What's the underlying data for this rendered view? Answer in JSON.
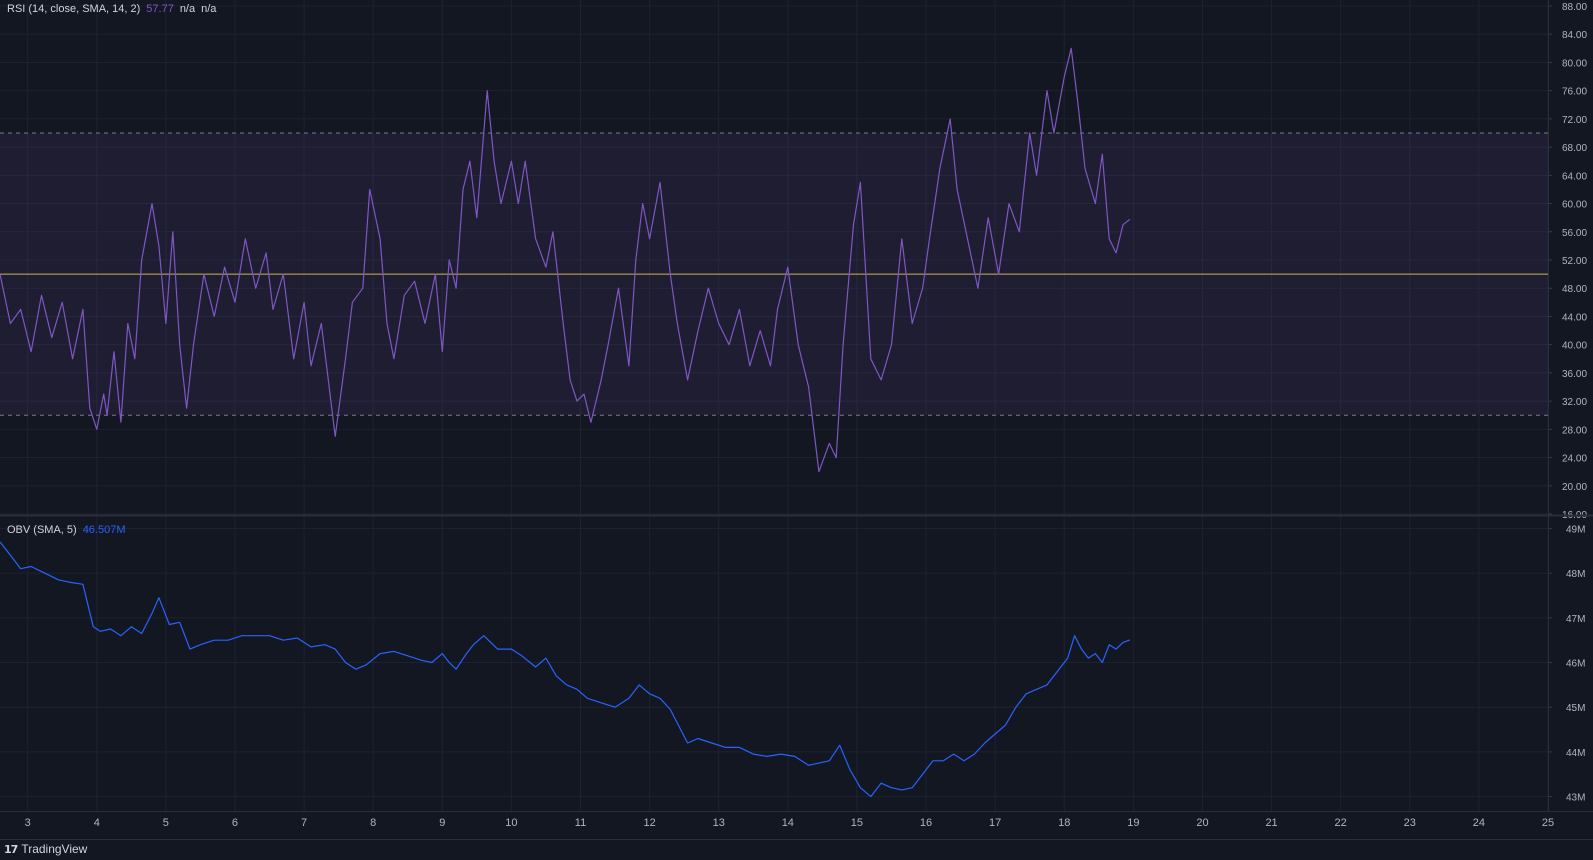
{
  "rsi_legend": {
    "label": "RSI (14, close, SMA, 14, 2)",
    "value": "57.77",
    "na1": "n/a",
    "na2": "n/a"
  },
  "obv_legend": {
    "label": "OBV (SMA, 5)",
    "value": "46.507M"
  },
  "footer": {
    "brand": "TradingView",
    "logo_icon": "tradingview-logo-icon"
  },
  "colors": {
    "background": "#131722",
    "rsi_line": "#7e57c2",
    "rsi_band": "#7e57c2",
    "midline": "#c9b45a",
    "obv_line": "#2962ff",
    "grid": "#1e2230",
    "axis_text": "#b2b5be"
  },
  "chart_data": [
    {
      "type": "line",
      "title": "RSI (14, close, SMA, 14, 2)",
      "ylim": [
        16,
        88
      ],
      "xlim": [
        2.6,
        25
      ],
      "y_ticks": [
        "16.00",
        "20.00",
        "24.00",
        "28.00",
        "32.00",
        "36.00",
        "40.00",
        "44.00",
        "48.00",
        "52.00",
        "56.00",
        "60.00",
        "64.00",
        "68.00",
        "72.00",
        "76.00",
        "80.00",
        "84.00",
        "88.00"
      ],
      "bands": {
        "upper": 70,
        "lower": 30,
        "middle": 50
      },
      "grid": true,
      "series": [
        {
          "values": [
            [
              2.6,
              50
            ],
            [
              2.75,
              43
            ],
            [
              2.9,
              45
            ],
            [
              3.05,
              39
            ],
            [
              3.2,
              47
            ],
            [
              3.35,
              41
            ],
            [
              3.5,
              46
            ],
            [
              3.65,
              38
            ],
            [
              3.8,
              45
            ],
            [
              3.9,
              31
            ],
            [
              4.0,
              28
            ],
            [
              4.1,
              33
            ],
            [
              4.15,
              30
            ],
            [
              4.25,
              39
            ],
            [
              4.35,
              29
            ],
            [
              4.45,
              43
            ],
            [
              4.55,
              38
            ],
            [
              4.65,
              52
            ],
            [
              4.8,
              60
            ],
            [
              4.9,
              54
            ],
            [
              5.0,
              43
            ],
            [
              5.1,
              56
            ],
            [
              5.2,
              40
            ],
            [
              5.3,
              31
            ],
            [
              5.4,
              40
            ],
            [
              5.55,
              50
            ],
            [
              5.7,
              44
            ],
            [
              5.85,
              51
            ],
            [
              6.0,
              46
            ],
            [
              6.15,
              55
            ],
            [
              6.3,
              48
            ],
            [
              6.45,
              53
            ],
            [
              6.55,
              45
            ],
            [
              6.7,
              50
            ],
            [
              6.85,
              38
            ],
            [
              7.0,
              46
            ],
            [
              7.1,
              37
            ],
            [
              7.25,
              43
            ],
            [
              7.35,
              35
            ],
            [
              7.45,
              27
            ],
            [
              7.6,
              38
            ],
            [
              7.7,
              46
            ],
            [
              7.85,
              48
            ],
            [
              7.95,
              62
            ],
            [
              8.1,
              55
            ],
            [
              8.2,
              43
            ],
            [
              8.3,
              38
            ],
            [
              8.45,
              47
            ],
            [
              8.6,
              49
            ],
            [
              8.75,
              43
            ],
            [
              8.9,
              50
            ],
            [
              9.0,
              39
            ],
            [
              9.1,
              52
            ],
            [
              9.2,
              48
            ],
            [
              9.3,
              62
            ],
            [
              9.4,
              66
            ],
            [
              9.5,
              58
            ],
            [
              9.65,
              76
            ],
            [
              9.75,
              66
            ],
            [
              9.85,
              60
            ],
            [
              10.0,
              66
            ],
            [
              10.1,
              60
            ],
            [
              10.2,
              66
            ],
            [
              10.35,
              55
            ],
            [
              10.5,
              51
            ],
            [
              10.6,
              56
            ],
            [
              10.75,
              43
            ],
            [
              10.85,
              35
            ],
            [
              10.95,
              32
            ],
            [
              11.05,
              33
            ],
            [
              11.15,
              29
            ],
            [
              11.3,
              35
            ],
            [
              11.4,
              40
            ],
            [
              11.55,
              48
            ],
            [
              11.7,
              37
            ],
            [
              11.8,
              52
            ],
            [
              11.9,
              60
            ],
            [
              12.0,
              55
            ],
            [
              12.15,
              63
            ],
            [
              12.3,
              50
            ],
            [
              12.4,
              43
            ],
            [
              12.55,
              35
            ],
            [
              12.7,
              42
            ],
            [
              12.85,
              48
            ],
            [
              13.0,
              43
            ],
            [
              13.15,
              40
            ],
            [
              13.3,
              45
            ],
            [
              13.45,
              37
            ],
            [
              13.6,
              42
            ],
            [
              13.75,
              37
            ],
            [
              13.85,
              45
            ],
            [
              14.0,
              51
            ],
            [
              14.15,
              40
            ],
            [
              14.3,
              34
            ],
            [
              14.45,
              22
            ],
            [
              14.6,
              26
            ],
            [
              14.7,
              24
            ],
            [
              14.8,
              40
            ],
            [
              14.95,
              57
            ],
            [
              15.05,
              63
            ],
            [
              15.2,
              38
            ],
            [
              15.35,
              35
            ],
            [
              15.5,
              40
            ],
            [
              15.65,
              55
            ],
            [
              15.8,
              43
            ],
            [
              15.95,
              48
            ],
            [
              16.05,
              55
            ],
            [
              16.2,
              65
            ],
            [
              16.35,
              72
            ],
            [
              16.45,
              62
            ],
            [
              16.6,
              55
            ],
            [
              16.75,
              48
            ],
            [
              16.9,
              58
            ],
            [
              17.05,
              50
            ],
            [
              17.2,
              60
            ],
            [
              17.35,
              56
            ],
            [
              17.5,
              70
            ],
            [
              17.6,
              64
            ],
            [
              17.75,
              76
            ],
            [
              17.85,
              70
            ],
            [
              18.0,
              78
            ],
            [
              18.1,
              82
            ],
            [
              18.2,
              74
            ],
            [
              18.3,
              65
            ],
            [
              18.45,
              60
            ],
            [
              18.55,
              67
            ],
            [
              18.65,
              55
            ],
            [
              18.75,
              53
            ],
            [
              18.85,
              57
            ],
            [
              18.95,
              57.77
            ]
          ]
        }
      ]
    },
    {
      "type": "line",
      "title": "OBV (SMA, 5)",
      "ylim": [
        42.7,
        49.1
      ],
      "xlim": [
        2.6,
        25
      ],
      "y_ticks": [
        "43M",
        "44M",
        "45M",
        "46M",
        "47M",
        "48M",
        "49M"
      ],
      "x_ticks": [
        "3",
        "4",
        "5",
        "6",
        "7",
        "8",
        "9",
        "10",
        "11",
        "12",
        "13",
        "14",
        "15",
        "16",
        "17",
        "18",
        "19",
        "20",
        "21",
        "22",
        "23",
        "24",
        "25"
      ],
      "grid": true,
      "series": [
        {
          "values": [
            [
              2.6,
              48.7
            ],
            [
              2.75,
              48.4
            ],
            [
              2.9,
              48.1
            ],
            [
              3.05,
              48.15
            ],
            [
              3.25,
              48.0
            ],
            [
              3.45,
              47.85
            ],
            [
              3.6,
              47.8
            ],
            [
              3.8,
              47.75
            ],
            [
              3.95,
              46.8
            ],
            [
              4.05,
              46.7
            ],
            [
              4.2,
              46.75
            ],
            [
              4.35,
              46.6
            ],
            [
              4.5,
              46.8
            ],
            [
              4.65,
              46.65
            ],
            [
              4.8,
              47.1
            ],
            [
              4.9,
              47.45
            ],
            [
              5.05,
              46.85
            ],
            [
              5.2,
              46.9
            ],
            [
              5.35,
              46.3
            ],
            [
              5.5,
              46.4
            ],
            [
              5.7,
              46.5
            ],
            [
              5.9,
              46.5
            ],
            [
              6.1,
              46.6
            ],
            [
              6.3,
              46.6
            ],
            [
              6.5,
              46.6
            ],
            [
              6.7,
              46.5
            ],
            [
              6.9,
              46.55
            ],
            [
              7.1,
              46.35
            ],
            [
              7.3,
              46.4
            ],
            [
              7.45,
              46.3
            ],
            [
              7.6,
              46.0
            ],
            [
              7.75,
              45.85
            ],
            [
              7.9,
              45.95
            ],
            [
              8.1,
              46.2
            ],
            [
              8.3,
              46.25
            ],
            [
              8.5,
              46.15
            ],
            [
              8.7,
              46.05
            ],
            [
              8.85,
              46.0
            ],
            [
              9.0,
              46.2
            ],
            [
              9.1,
              46.0
            ],
            [
              9.2,
              45.85
            ],
            [
              9.35,
              46.2
            ],
            [
              9.45,
              46.4
            ],
            [
              9.6,
              46.6
            ],
            [
              9.8,
              46.3
            ],
            [
              10.0,
              46.3
            ],
            [
              10.15,
              46.15
            ],
            [
              10.35,
              45.9
            ],
            [
              10.5,
              46.1
            ],
            [
              10.65,
              45.7
            ],
            [
              10.8,
              45.5
            ],
            [
              10.95,
              45.4
            ],
            [
              11.1,
              45.2
            ],
            [
              11.3,
              45.1
            ],
            [
              11.5,
              45.0
            ],
            [
              11.7,
              45.2
            ],
            [
              11.85,
              45.5
            ],
            [
              12.0,
              45.3
            ],
            [
              12.15,
              45.2
            ],
            [
              12.3,
              44.95
            ],
            [
              12.45,
              44.5
            ],
            [
              12.55,
              44.2
            ],
            [
              12.7,
              44.3
            ],
            [
              12.9,
              44.2
            ],
            [
              13.1,
              44.1
            ],
            [
              13.3,
              44.1
            ],
            [
              13.5,
              43.95
            ],
            [
              13.7,
              43.9
            ],
            [
              13.9,
              43.95
            ],
            [
              14.1,
              43.9
            ],
            [
              14.3,
              43.7
            ],
            [
              14.45,
              43.75
            ],
            [
              14.6,
              43.8
            ],
            [
              14.75,
              44.15
            ],
            [
              14.9,
              43.6
            ],
            [
              15.05,
              43.2
            ],
            [
              15.2,
              43.0
            ],
            [
              15.35,
              43.3
            ],
            [
              15.5,
              43.2
            ],
            [
              15.65,
              43.15
            ],
            [
              15.8,
              43.2
            ],
            [
              15.95,
              43.5
            ],
            [
              16.1,
              43.8
            ],
            [
              16.25,
              43.8
            ],
            [
              16.4,
              43.95
            ],
            [
              16.55,
              43.8
            ],
            [
              16.7,
              43.95
            ],
            [
              16.85,
              44.2
            ],
            [
              17.0,
              44.4
            ],
            [
              17.15,
              44.6
            ],
            [
              17.3,
              45.0
            ],
            [
              17.45,
              45.3
            ],
            [
              17.6,
              45.4
            ],
            [
              17.75,
              45.5
            ],
            [
              17.9,
              45.8
            ],
            [
              18.05,
              46.1
            ],
            [
              18.15,
              46.6
            ],
            [
              18.25,
              46.3
            ],
            [
              18.35,
              46.1
            ],
            [
              18.45,
              46.2
            ],
            [
              18.55,
              46.0
            ],
            [
              18.65,
              46.4
            ],
            [
              18.75,
              46.3
            ],
            [
              18.85,
              46.45
            ],
            [
              18.95,
              46.507
            ]
          ]
        }
      ]
    }
  ]
}
